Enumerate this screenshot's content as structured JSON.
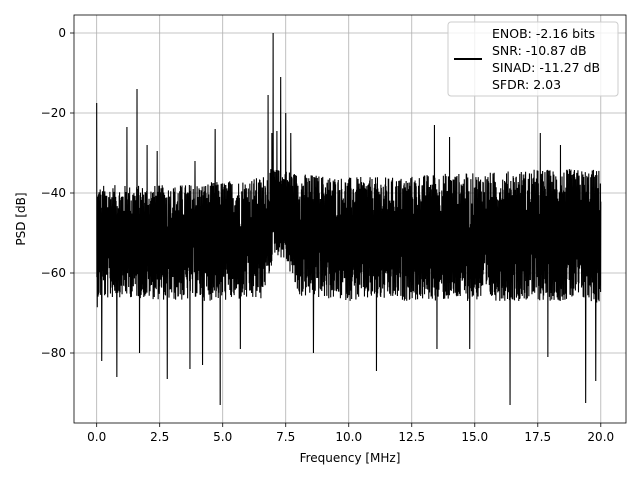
{
  "chart_data": {
    "type": "line",
    "title": "",
    "xlabel": "Frequency [MHz]",
    "ylabel": "PSD [dB]",
    "xlim": [
      -0.9,
      21.0
    ],
    "ylim": [
      -97.5,
      4.5
    ],
    "xticks": [
      0.0,
      2.5,
      5.0,
      7.5,
      10.0,
      12.5,
      15.0,
      17.5,
      20.0
    ],
    "xtick_labels": [
      "0.0",
      "2.5",
      "5.0",
      "7.5",
      "10.0",
      "12.5",
      "15.0",
      "17.5",
      "20.0"
    ],
    "yticks": [
      0,
      -20,
      -40,
      -60,
      -80
    ],
    "ytick_labels": [
      "0",
      "−20",
      "−40",
      "−60",
      "−80"
    ],
    "grid": true,
    "legend_position": "top-right",
    "legend_lines": [
      "ENOB: -2.16 bits",
      "SNR: -10.87 dB",
      "SINAD: -11.27 dB",
      "SFDR: 2.03"
    ],
    "series": [
      {
        "color": "#000000",
        "profile": {
          "x": [
            0.0,
            0.05,
            1.0,
            3.0,
            5.0,
            6.5,
            6.9,
            7.0,
            7.5,
            8.0,
            10.0,
            12.0,
            13.5,
            15.0,
            17.5,
            19.5,
            20.0
          ],
          "upper": [
            -38,
            -38,
            -38,
            -38,
            -37,
            -36,
            -34,
            -34,
            -34,
            -35,
            -36,
            -36,
            -35,
            -35,
            -34,
            -34,
            -34
          ],
          "lower": [
            -70,
            -67,
            -66,
            -67,
            -67,
            -67,
            -60,
            -55,
            -57,
            -66,
            -67,
            -67,
            -67,
            -67,
            -67,
            -67,
            -68
          ],
          "mean": [
            -53,
            -52,
            -52,
            -52,
            -52,
            -51,
            -47,
            -45,
            -46,
            -50,
            -51,
            -51,
            -51,
            -51,
            -51,
            -51,
            -52
          ]
        },
        "peaks": [
          {
            "x": 0.0,
            "y": -17.5
          },
          {
            "x": 1.2,
            "y": -23.5
          },
          {
            "x": 1.6,
            "y": -14
          },
          {
            "x": 2.0,
            "y": -28
          },
          {
            "x": 2.4,
            "y": -29.5
          },
          {
            "x": 3.9,
            "y": -32
          },
          {
            "x": 4.7,
            "y": -24
          },
          {
            "x": 6.8,
            "y": -15.5
          },
          {
            "x": 6.95,
            "y": -25
          },
          {
            "x": 7.0,
            "y": 0
          },
          {
            "x": 7.15,
            "y": -24.5
          },
          {
            "x": 7.3,
            "y": -11
          },
          {
            "x": 7.5,
            "y": -20
          },
          {
            "x": 7.7,
            "y": -25
          },
          {
            "x": 13.4,
            "y": -23
          },
          {
            "x": 14.0,
            "y": -26
          },
          {
            "x": 17.6,
            "y": -25
          },
          {
            "x": 18.4,
            "y": -28
          }
        ],
        "troughs": [
          {
            "x": 0.2,
            "y": -82
          },
          {
            "x": 0.8,
            "y": -86
          },
          {
            "x": 1.7,
            "y": -80
          },
          {
            "x": 2.8,
            "y": -86.5
          },
          {
            "x": 3.7,
            "y": -84
          },
          {
            "x": 4.2,
            "y": -83
          },
          {
            "x": 4.9,
            "y": -93
          },
          {
            "x": 5.7,
            "y": -79
          },
          {
            "x": 8.6,
            "y": -80
          },
          {
            "x": 11.1,
            "y": -84.5
          },
          {
            "x": 13.5,
            "y": -79
          },
          {
            "x": 14.8,
            "y": -79
          },
          {
            "x": 16.4,
            "y": -93
          },
          {
            "x": 17.9,
            "y": -81
          },
          {
            "x": 19.4,
            "y": -92.5
          },
          {
            "x": 19.8,
            "y": -87
          }
        ]
      }
    ]
  }
}
